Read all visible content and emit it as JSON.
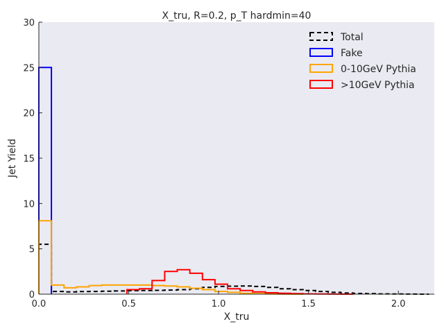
{
  "chart_data": {
    "type": "histogram",
    "title": "X_tru, R=0.2, p_T hardmin=40",
    "xlabel": "X_tru",
    "ylabel": "Jet Yield",
    "xlim": [
      0,
      2.2
    ],
    "ylim": [
      0,
      30
    ],
    "x_ticks": [
      "0.0",
      "0.5",
      "1.0",
      "1.5",
      "2.0"
    ],
    "y_ticks": [
      "0",
      "5",
      "10",
      "15",
      "20",
      "25",
      "30"
    ],
    "grid": false,
    "background": "#eaeaf2",
    "legend_position": "top-right",
    "bin_width": 0.07,
    "series": [
      {
        "name": "Total",
        "color": "#000000",
        "dashed": true,
        "start": 0.0,
        "values": [
          5.5,
          0.3,
          0.25,
          0.28,
          0.3,
          0.32,
          0.35,
          0.38,
          0.4,
          0.42,
          0.45,
          0.5,
          0.6,
          0.75,
          0.85,
          0.88,
          0.9,
          0.85,
          0.75,
          0.6,
          0.5,
          0.4,
          0.3,
          0.2,
          0.12,
          0.08,
          0.05,
          0.03,
          0.02,
          0.01,
          0.0
        ]
      },
      {
        "name": "Fake",
        "color": "#0000ff",
        "dashed": false,
        "start": 0.0,
        "values": [
          25.0
        ]
      },
      {
        "name": "0-10GeV Pythia",
        "color": "#ffa500",
        "dashed": false,
        "start": 0.0,
        "values": [
          8.1,
          1.0,
          0.7,
          0.8,
          0.95,
          1.0,
          1.0,
          1.0,
          1.0,
          0.95,
          0.9,
          0.8,
          0.65,
          0.5,
          0.3,
          0.2,
          0.1,
          0.05,
          0.02,
          0.01,
          0.0
        ]
      },
      {
        "name": ">10GeV Pythia",
        "color": "#ff0000",
        "dashed": false,
        "start": 0.49,
        "values": [
          0.5,
          0.6,
          1.5,
          2.5,
          2.7,
          2.3,
          1.6,
          1.1,
          0.6,
          0.4,
          0.25,
          0.15,
          0.1,
          0.05,
          0.03,
          0.02,
          0.01,
          0.0
        ]
      }
    ]
  }
}
